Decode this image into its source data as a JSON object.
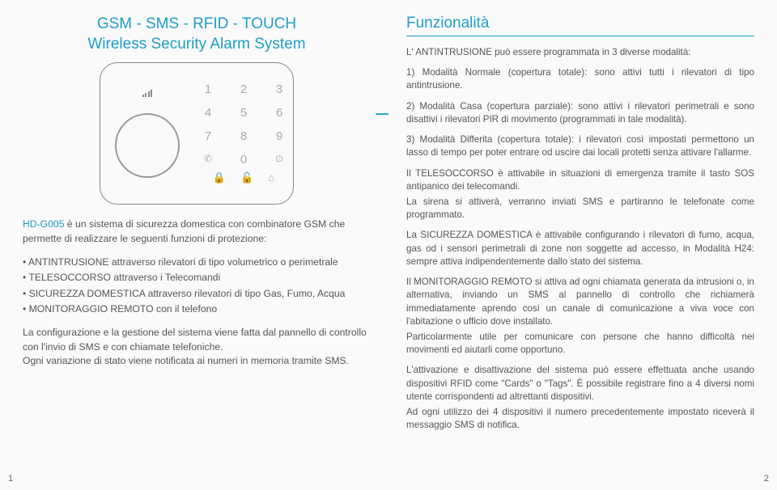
{
  "left": {
    "title1": "GSM - SMS - RFID - TOUCH",
    "title2": "Wireless Security Alarm System",
    "keypad": [
      "1",
      "2",
      "3",
      "4",
      "5",
      "6",
      "7",
      "8",
      "9",
      "",
      "0",
      ""
    ],
    "intro_brand": "HD-G005",
    "intro_rest": " è un sistema di sicurezza domestica con combinatore GSM che permette di realizzare le seguenti funzioni di protezione:",
    "bullets": [
      "ANTINTRUSIONE attraverso rilevatori di tipo volumetrico o perimetrale",
      "TELESOCCORSO attraverso i Telecomandi",
      "SICUREZZA DOMESTICA attraverso rilevatori di tipo Gas, Fumo, Acqua",
      "MONITORAGGIO REMOTO con il telefono"
    ],
    "outro1": "La configurazione e la gestione del sistema viene fatta dal pannello di controllo con l'invio di SMS e con chiamate telefoniche.",
    "outro2": "Ogni variazione di stato viene notificata ai numeri in memoria tramite SMS.",
    "page": "1"
  },
  "right": {
    "heading": "Funzionalità",
    "p1": "L' ANTINTRUSIONE può essere programmata in 3 diverse modalità:",
    "p2": "1) Modalità Normale (copertura totale): sono attivi tutti i rilevatori di tipo antintrusione.",
    "p3": "2) Modalità Casa (copertura parziale): sono attivi i rilevatori perimetrali e sono disattivi i rilevatori PIR di movimento (programmati in tale modalità).",
    "p4": "3) Modalità Differita (copertura totale): i rilevatori così impostati permettono un lasso di tempo per poter entrare od uscire dai locali protetti senza attivare l'allarme.",
    "p5": "Il TELESOCCORSO è attivabile in situazioni di emergenza tramite il tasto SOS antipanico dei telecomandi.",
    "p6": "La sirena si attiverà, verranno inviati SMS e partiranno le telefonate come programmato.",
    "p7": "La SICUREZZA DOMESTICA è attivabile configurando i rilevatori di fumo, acqua, gas od i sensori perimetrali di zone non soggette ad accesso, in Modalità H24: sempre attiva indipendentemente dallo stato del sistema.",
    "p8": "Il MONITORAGGIO REMOTO si attiva ad ogni chiamata generata da intrusioni o, in alternativa, inviando un SMS al pannello di controllo che richiamerà immediatamente aprendo così un canale di comunicazione a viva voce con l'abitazione o ufficio dove installato.",
    "p9": "Particolarmente utile per comunicare con persone che hanno difficoltà nei movimenti ed aiutarli come opportuno.",
    "p10": "L'attivazione e disattivazione del sistema può essere effettuata anche usando dispositivi RFID come \"Cards\" o \"Tags\". È possibile registrare fino a 4 diversi nomi utente corrispondenti ad altrettanti dispositivi.",
    "p11": "Ad ogni utilizzo dei 4 dispositivi il numero precedentemente impostato riceverà il messaggio SMS di notifica.",
    "page": "2"
  },
  "colors": {
    "accent": "#1e9ec4",
    "text": "#555555",
    "device_border": "#888888"
  }
}
